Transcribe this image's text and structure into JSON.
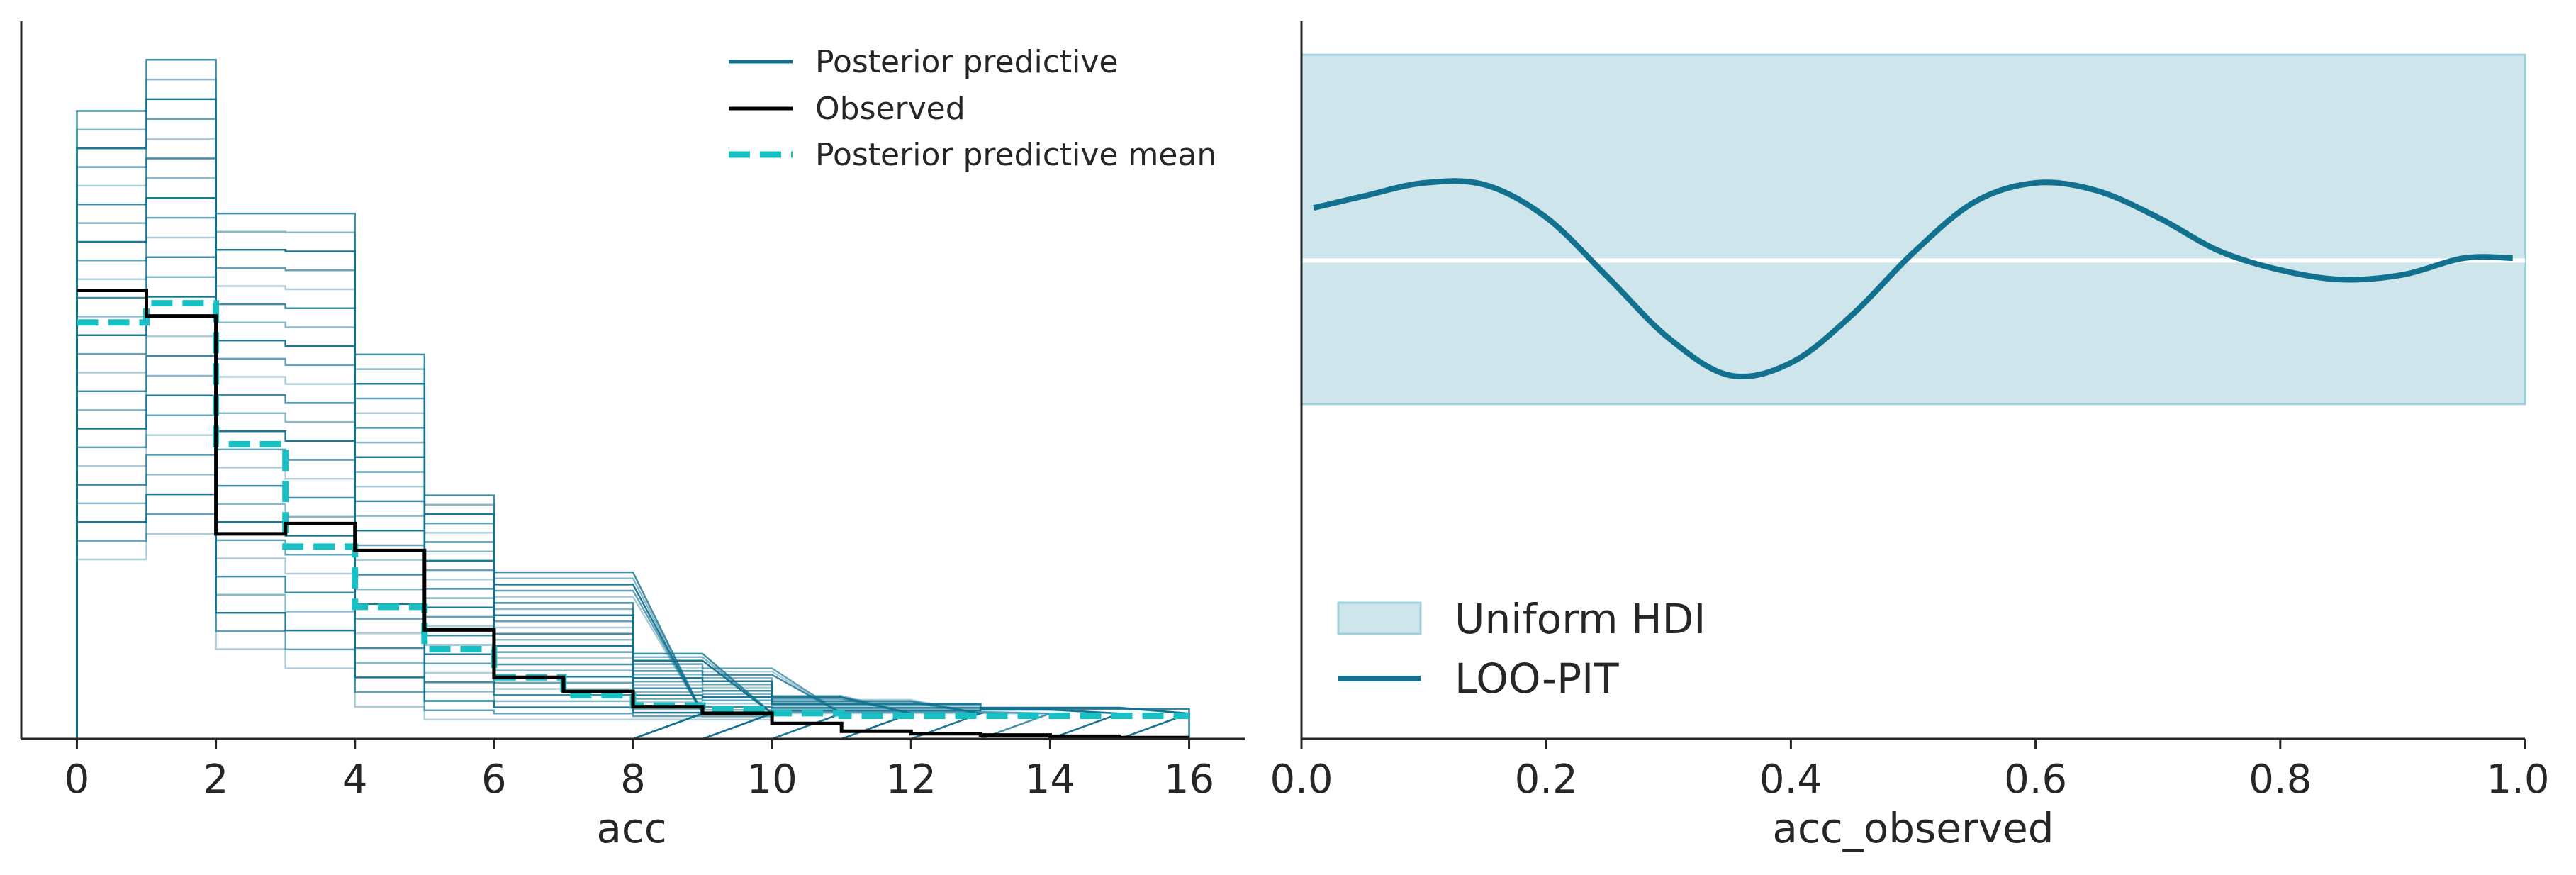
{
  "colors": {
    "posterior_predictive": "#11718f",
    "observed": "#000000",
    "mean": "#18c0c4",
    "hdi_fill": "#cde5eb",
    "hdi_edge": "#9fcfdb",
    "loo_pit": "#11718f",
    "axis": "#262626"
  },
  "chart_data": [
    {
      "type": "line",
      "subtype": "posterior predictive check (step histograms)",
      "xlabel": "acc",
      "ylabel": "",
      "xlim": [
        -0.8,
        16.8
      ],
      "ylim": [
        0,
        0.56
      ],
      "xticks": [
        0,
        2,
        4,
        6,
        8,
        10,
        12,
        14,
        16
      ],
      "grid": false,
      "legend_position": "top-right",
      "legend": [
        "Posterior predictive",
        "Observed",
        "Posterior predictive mean"
      ],
      "series": [
        {
          "name": "Observed",
          "style": "solid-black",
          "bins": [
            0,
            1,
            2,
            3,
            4,
            5,
            6,
            7,
            8,
            9,
            10,
            11,
            12,
            13,
            14,
            15
          ],
          "values": [
            0.35,
            0.33,
            0.16,
            0.168,
            0.147,
            0.085,
            0.048,
            0.037,
            0.025,
            0.02,
            0.012,
            0.006,
            0.004,
            0.003,
            0.002,
            0.001
          ]
        },
        {
          "name": "Posterior predictive mean",
          "style": "dashed-teal",
          "bins": [
            0,
            1,
            2,
            3,
            4,
            5,
            6,
            7,
            8,
            9,
            10,
            11,
            12,
            13,
            14,
            15
          ],
          "values": [
            0.325,
            0.34,
            0.23,
            0.15,
            0.103,
            0.07,
            0.048,
            0.034,
            0.026,
            0.023,
            0.02,
            0.018,
            0.018,
            0.018,
            0.018,
            0.018
          ]
        }
      ],
      "posterior_predictive": {
        "name": "Posterior predictive",
        "bins": [
          0,
          1,
          2,
          3,
          4,
          5,
          6,
          7,
          8,
          9,
          10,
          11,
          12,
          13,
          14,
          15
        ],
        "bin_min": [
          0.14,
          0.16,
          0.07,
          0.055,
          0.025,
          0.015,
          0.015,
          0.015,
          0.015,
          0.015,
          0.02,
          0.02,
          0.02,
          0.022,
          0.022,
          0.022
        ],
        "bin_max": [
          0.49,
          0.53,
          0.41,
          0.41,
          0.3,
          0.19,
          0.13,
          0.13,
          0.08,
          0.075,
          0.045,
          0.045,
          0.045,
          0.03,
          0.03,
          0.03
        ],
        "max_x": [
          13,
          13,
          14,
          14,
          16,
          16,
          15,
          15,
          12,
          12,
          12,
          11,
          11,
          11,
          10,
          10,
          10,
          9,
          9,
          9,
          8,
          8,
          8,
          8,
          8
        ]
      }
    },
    {
      "type": "area",
      "subtype": "LOO-PIT KDE with uniform HDI band",
      "xlabel": "acc_observed",
      "ylabel": "",
      "xlim": [
        0.0,
        1.0
      ],
      "ylim": [
        0,
        1.5
      ],
      "xticks": [
        "0.0",
        "0.2",
        "0.4",
        "0.6",
        "0.8",
        "1.0"
      ],
      "grid": false,
      "legend_position": "lower-left",
      "legend": [
        "Uniform HDI",
        "LOO-PIT"
      ],
      "hdi": {
        "lower": 0.7,
        "upper": 1.43,
        "reference": 1.0
      },
      "loo_pit": {
        "name": "LOO-PIT",
        "x": [
          0.01,
          0.05,
          0.1,
          0.15,
          0.2,
          0.25,
          0.3,
          0.35,
          0.4,
          0.45,
          0.5,
          0.55,
          0.6,
          0.65,
          0.7,
          0.75,
          0.8,
          0.85,
          0.9,
          0.95,
          0.99
        ],
        "y": [
          1.11,
          1.134,
          1.162,
          1.158,
          1.09,
          0.966,
          0.838,
          0.76,
          0.786,
          0.886,
          1.016,
          1.122,
          1.162,
          1.146,
          1.09,
          1.02,
          0.98,
          0.96,
          0.97,
          1.005,
          1.005
        ]
      }
    }
  ]
}
